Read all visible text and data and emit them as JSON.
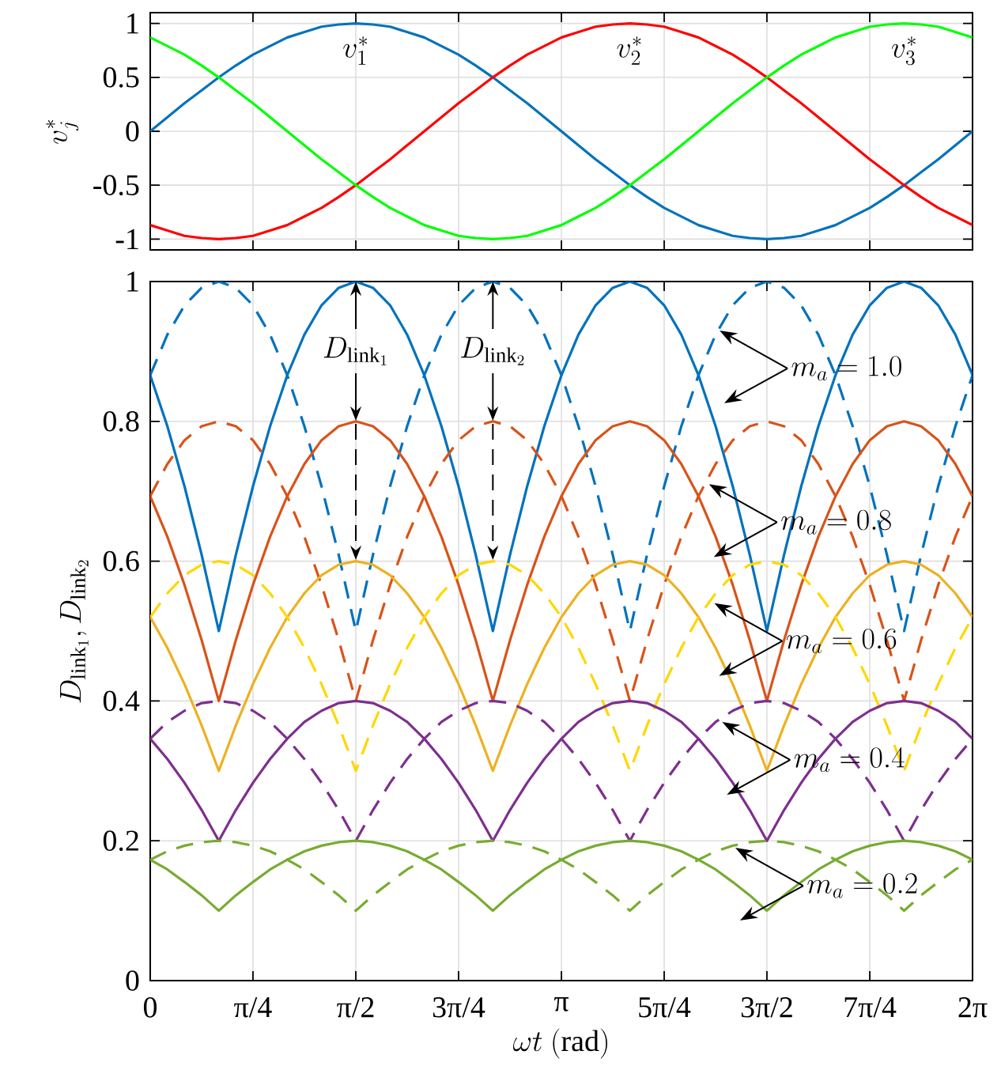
{
  "chart_data": [
    {
      "type": "line",
      "ylabel": "v_j^*",
      "x": [
        0,
        0.131,
        0.262,
        0.393,
        0.524,
        0.654,
        0.785,
        0.916,
        1.047,
        1.178,
        1.309,
        1.44,
        1.571,
        1.702,
        1.833,
        1.963,
        2.094,
        2.225,
        2.356,
        2.487,
        2.618,
        2.749,
        2.88,
        3.011,
        3.142,
        3.272,
        3.403,
        3.534,
        3.665,
        3.796,
        3.927,
        4.058,
        4.189,
        4.32,
        4.451,
        4.581,
        4.712,
        4.843,
        4.974,
        5.105,
        5.236,
        5.367,
        5.498,
        5.629,
        5.76,
        5.89,
        6.021,
        6.152,
        6.283
      ],
      "series": [
        {
          "color": "#0072bd",
          "values": [
            0,
            0.13,
            0.26,
            0.38,
            0.5,
            0.61,
            0.71,
            0.79,
            0.87,
            0.92,
            0.97,
            0.99,
            1,
            0.99,
            0.97,
            0.92,
            0.87,
            0.79,
            0.71,
            0.61,
            0.5,
            0.38,
            0.26,
            0.13,
            0,
            -0.13,
            -0.26,
            -0.38,
            -0.5,
            -0.61,
            -0.71,
            -0.79,
            -0.87,
            -0.92,
            -0.97,
            -0.99,
            -1,
            -0.99,
            -0.97,
            -0.92,
            -0.87,
            -0.79,
            -0.71,
            -0.61,
            -0.5,
            -0.38,
            -0.26,
            -0.13,
            0
          ]
        },
        {
          "color": "#ff0000",
          "values": [
            -0.87,
            -0.92,
            -0.97,
            -0.99,
            -1,
            -0.99,
            -0.97,
            -0.92,
            -0.87,
            -0.79,
            -0.71,
            -0.61,
            -0.5,
            -0.38,
            -0.26,
            -0.13,
            0,
            0.13,
            0.26,
            0.38,
            0.5,
            0.61,
            0.71,
            0.79,
            0.87,
            0.92,
            0.97,
            0.99,
            1,
            0.99,
            0.97,
            0.92,
            0.87,
            0.79,
            0.71,
            0.61,
            0.5,
            0.38,
            0.26,
            0.13,
            0,
            -0.13,
            -0.26,
            -0.38,
            -0.5,
            -0.61,
            -0.71,
            -0.79,
            -0.87
          ]
        },
        {
          "color": "#00ff00",
          "values": [
            0.87,
            0.79,
            0.71,
            0.61,
            0.5,
            0.38,
            0.26,
            0.13,
            0,
            -0.13,
            -0.26,
            -0.38,
            -0.5,
            -0.61,
            -0.71,
            -0.79,
            -0.87,
            -0.92,
            -0.97,
            -0.99,
            -1,
            -0.99,
            -0.97,
            -0.92,
            -0.87,
            -0.79,
            -0.71,
            -0.61,
            -0.5,
            -0.38,
            -0.26,
            -0.13,
            0,
            0.13,
            0.26,
            0.38,
            0.5,
            0.61,
            0.71,
            0.79,
            0.87,
            0.92,
            0.97,
            0.99,
            1,
            0.99,
            0.97,
            0.92,
            0.87
          ]
        }
      ],
      "xlim": [
        0,
        6.283
      ],
      "ylim": [
        -1.1,
        1.1
      ],
      "xticks": [
        {
          "value": 0,
          "label": null
        },
        {
          "value": 0.785,
          "label": null
        },
        {
          "value": 1.571,
          "label": null
        },
        {
          "value": 2.356,
          "label": null
        },
        {
          "value": 3.142,
          "label": null
        },
        {
          "value": 3.927,
          "label": null
        },
        {
          "value": 4.712,
          "label": null
        },
        {
          "value": 5.498,
          "label": null
        },
        {
          "value": 6.283,
          "label": null
        }
      ],
      "yticks": [
        -1,
        -0.5,
        0,
        0.5,
        1
      ],
      "tick_labels": "y",
      "grid": true,
      "line_style": "solid",
      "marker": "none",
      "annotations": [
        "v_1^*",
        "v_2^*",
        "v_3^*"
      ]
    },
    {
      "type": "line",
      "xlabel": "\\omega t\\ (\\mathrm{rad})",
      "ylabel": "D_{\\mathrm{link}_1}, D_{\\mathrm{link}_2}",
      "x": [
        0,
        0.131,
        0.262,
        0.393,
        0.524,
        0.654,
        0.785,
        0.916,
        1.047,
        1.178,
        1.309,
        1.44,
        1.571,
        1.702,
        1.833,
        1.963,
        2.094,
        2.225,
        2.356,
        2.487,
        2.618,
        2.749,
        2.88,
        3.011,
        3.142,
        3.272,
        3.403,
        3.534,
        3.665,
        3.796,
        3.927,
        4.058,
        4.189,
        4.32,
        4.451,
        4.581,
        4.712,
        4.843,
        4.974,
        5.105,
        5.236,
        5.367,
        5.498,
        5.629,
        5.76,
        5.89,
        6.021,
        6.152,
        6.283
      ],
      "series": [
        {
          "color": "#0072bd",
          "line_style": "solid",
          "values": [
            0.866,
            0.793,
            0.707,
            0.609,
            0.5,
            0.609,
            0.707,
            0.793,
            0.866,
            0.924,
            0.966,
            0.991,
            1,
            0.991,
            0.966,
            0.924,
            0.866,
            0.793,
            0.707,
            0.609,
            0.5,
            0.609,
            0.707,
            0.793,
            0.866,
            0.924,
            0.966,
            0.991,
            1,
            0.991,
            0.966,
            0.924,
            0.866,
            0.793,
            0.707,
            0.609,
            0.5,
            0.609,
            0.707,
            0.793,
            0.866,
            0.924,
            0.966,
            0.991,
            1,
            0.991,
            0.966,
            0.924,
            0.866
          ]
        },
        {
          "color": "#0072bd",
          "line_style": "dashed",
          "values": [
            0.866,
            0.924,
            0.966,
            0.991,
            1,
            0.991,
            0.966,
            0.924,
            0.866,
            0.793,
            0.707,
            0.609,
            0.5,
            0.609,
            0.707,
            0.793,
            0.866,
            0.924,
            0.966,
            0.991,
            1,
            0.991,
            0.966,
            0.924,
            0.866,
            0.793,
            0.707,
            0.609,
            0.5,
            0.609,
            0.707,
            0.793,
            0.866,
            0.924,
            0.966,
            0.991,
            1,
            0.991,
            0.966,
            0.924,
            0.866,
            0.793,
            0.707,
            0.609,
            0.5,
            0.609,
            0.707,
            0.793,
            0.866
          ]
        },
        {
          "color": "#d95319",
          "line_style": "solid",
          "values": [
            0.693,
            0.635,
            0.566,
            0.487,
            0.4,
            0.487,
            0.566,
            0.635,
            0.693,
            0.739,
            0.773,
            0.793,
            0.8,
            0.793,
            0.773,
            0.739,
            0.693,
            0.635,
            0.566,
            0.487,
            0.4,
            0.487,
            0.566,
            0.635,
            0.693,
            0.739,
            0.773,
            0.793,
            0.8,
            0.793,
            0.773,
            0.739,
            0.693,
            0.635,
            0.566,
            0.487,
            0.4,
            0.487,
            0.566,
            0.635,
            0.693,
            0.739,
            0.773,
            0.793,
            0.8,
            0.793,
            0.773,
            0.739,
            0.693
          ]
        },
        {
          "color": "#d95319",
          "line_style": "dashed",
          "values": [
            0.693,
            0.739,
            0.773,
            0.793,
            0.8,
            0.793,
            0.773,
            0.739,
            0.693,
            0.635,
            0.566,
            0.487,
            0.4,
            0.487,
            0.566,
            0.635,
            0.693,
            0.739,
            0.773,
            0.793,
            0.8,
            0.793,
            0.773,
            0.739,
            0.693,
            0.635,
            0.566,
            0.487,
            0.4,
            0.487,
            0.566,
            0.635,
            0.693,
            0.739,
            0.773,
            0.793,
            0.8,
            0.793,
            0.773,
            0.739,
            0.693,
            0.635,
            0.566,
            0.487,
            0.4,
            0.487,
            0.566,
            0.635,
            0.693
          ]
        },
        {
          "color": "#edb120",
          "line_style": "solid",
          "values": [
            0.52,
            0.476,
            0.424,
            0.365,
            0.3,
            0.365,
            0.424,
            0.476,
            0.52,
            0.554,
            0.58,
            0.595,
            0.6,
            0.595,
            0.58,
            0.554,
            0.52,
            0.476,
            0.424,
            0.365,
            0.3,
            0.365,
            0.424,
            0.476,
            0.52,
            0.554,
            0.58,
            0.595,
            0.6,
            0.595,
            0.58,
            0.554,
            0.52,
            0.476,
            0.424,
            0.365,
            0.3,
            0.365,
            0.424,
            0.476,
            0.52,
            0.554,
            0.58,
            0.595,
            0.6,
            0.595,
            0.58,
            0.554,
            0.52
          ]
        },
        {
          "color": "#ffd700",
          "line_style": "dashed",
          "values": [
            0.52,
            0.554,
            0.58,
            0.595,
            0.6,
            0.595,
            0.58,
            0.554,
            0.52,
            0.476,
            0.424,
            0.365,
            0.3,
            0.365,
            0.424,
            0.476,
            0.52,
            0.554,
            0.58,
            0.595,
            0.6,
            0.595,
            0.58,
            0.554,
            0.52,
            0.476,
            0.424,
            0.365,
            0.3,
            0.365,
            0.424,
            0.476,
            0.52,
            0.554,
            0.58,
            0.595,
            0.6,
            0.595,
            0.58,
            0.554,
            0.52,
            0.476,
            0.424,
            0.365,
            0.3,
            0.365,
            0.424,
            0.476,
            0.52
          ]
        },
        {
          "color": "#7e2f8e",
          "line_style": "solid",
          "values": [
            0.346,
            0.317,
            0.283,
            0.244,
            0.2,
            0.244,
            0.283,
            0.317,
            0.346,
            0.37,
            0.386,
            0.397,
            0.4,
            0.397,
            0.386,
            0.37,
            0.346,
            0.317,
            0.283,
            0.244,
            0.2,
            0.244,
            0.283,
            0.317,
            0.346,
            0.37,
            0.386,
            0.397,
            0.4,
            0.397,
            0.386,
            0.37,
            0.346,
            0.317,
            0.283,
            0.244,
            0.2,
            0.244,
            0.283,
            0.317,
            0.346,
            0.37,
            0.386,
            0.397,
            0.4,
            0.397,
            0.386,
            0.37,
            0.346
          ]
        },
        {
          "color": "#7e2f8e",
          "line_style": "dashed",
          "values": [
            0.346,
            0.37,
            0.386,
            0.397,
            0.4,
            0.397,
            0.386,
            0.37,
            0.346,
            0.317,
            0.283,
            0.244,
            0.2,
            0.244,
            0.283,
            0.317,
            0.346,
            0.37,
            0.386,
            0.397,
            0.4,
            0.397,
            0.386,
            0.37,
            0.346,
            0.317,
            0.283,
            0.244,
            0.2,
            0.244,
            0.283,
            0.317,
            0.346,
            0.37,
            0.386,
            0.397,
            0.4,
            0.397,
            0.386,
            0.37,
            0.346,
            0.317,
            0.283,
            0.244,
            0.2,
            0.244,
            0.283,
            0.317,
            0.346
          ]
        },
        {
          "color": "#77ac30",
          "line_style": "solid",
          "values": [
            0.173,
            0.159,
            0.141,
            0.122,
            0.1,
            0.122,
            0.141,
            0.159,
            0.173,
            0.185,
            0.193,
            0.198,
            0.2,
            0.198,
            0.193,
            0.185,
            0.173,
            0.159,
            0.141,
            0.122,
            0.1,
            0.122,
            0.141,
            0.159,
            0.173,
            0.185,
            0.193,
            0.198,
            0.2,
            0.198,
            0.193,
            0.185,
            0.173,
            0.159,
            0.141,
            0.122,
            0.1,
            0.122,
            0.141,
            0.159,
            0.173,
            0.185,
            0.193,
            0.198,
            0.2,
            0.198,
            0.193,
            0.185,
            0.173
          ]
        },
        {
          "color": "#77ac30",
          "line_style": "dashed",
          "values": [
            0.173,
            0.185,
            0.193,
            0.198,
            0.2,
            0.198,
            0.193,
            0.185,
            0.173,
            0.159,
            0.141,
            0.122,
            0.1,
            0.122,
            0.141,
            0.159,
            0.173,
            0.185,
            0.193,
            0.198,
            0.2,
            0.198,
            0.193,
            0.185,
            0.173,
            0.159,
            0.141,
            0.122,
            0.1,
            0.122,
            0.141,
            0.159,
            0.173,
            0.185,
            0.193,
            0.198,
            0.2,
            0.198,
            0.193,
            0.185,
            0.173,
            0.159,
            0.141,
            0.122,
            0.1,
            0.122,
            0.141,
            0.159,
            0.173
          ]
        }
      ],
      "xlim": [
        0,
        6.283
      ],
      "ylim": [
        0,
        1
      ],
      "xticks": [
        0,
        {
          "value": 0.785,
          "label": "π/4"
        },
        {
          "value": 1.571,
          "label": "π/2"
        },
        {
          "value": 2.356,
          "label": "3π/4"
        },
        {
          "value": 3.142,
          "label": "π"
        },
        {
          "value": 3.927,
          "label": "5π/4"
        },
        {
          "value": 4.712,
          "label": "3π/2"
        },
        {
          "value": 5.498,
          "label": "7π/4"
        },
        {
          "value": 6.283,
          "label": "2π"
        }
      ],
      "yticks": [
        0,
        0.2,
        0.4,
        0.6,
        0.8,
        1
      ],
      "grid": true,
      "marker": "none",
      "annotations": [
        {
          "text": "D_{\\mathrm{link}_1}",
          "x": 1.571,
          "y": 1
        },
        {
          "text": "D_{\\mathrm{link}_2}",
          "x": 2.618,
          "y": 1
        },
        {
          "text": "m_a = 1.0",
          "x": 4.35,
          "y": 0.93
        },
        {
          "text": "m_a = 0.8",
          "x": 4.27,
          "y": 0.71
        },
        {
          "text": "m_a = 0.6",
          "x": 4.31,
          "y": 0.54
        },
        {
          "text": "m_a = 0.4",
          "x": 4.37,
          "y": 0.37
        },
        {
          "text": "m_a = 0.2",
          "x": 4.47,
          "y": 0.19
        }
      ]
    }
  ]
}
